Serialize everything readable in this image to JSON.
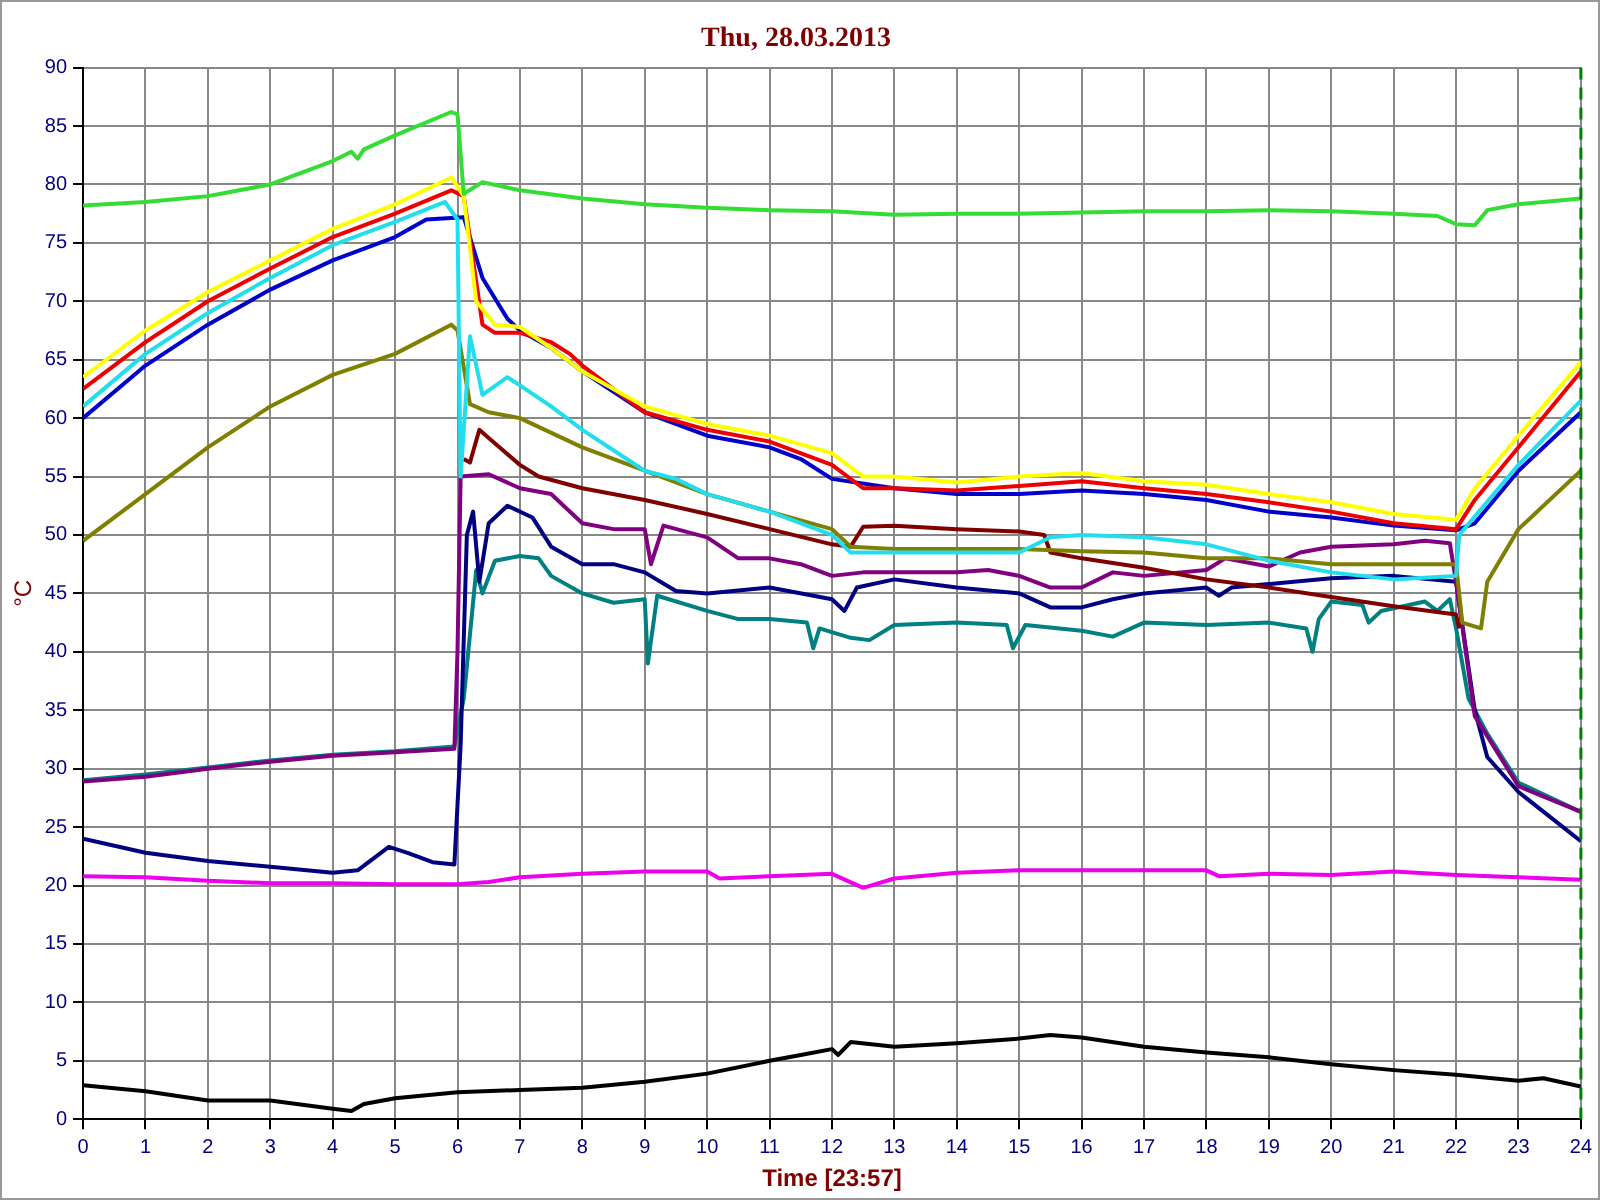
{
  "chart_data": {
    "type": "line",
    "title": "Thu, 28.03.2013",
    "xlabel": "Time [23:57]",
    "ylabel": "°C",
    "xlim": [
      0,
      24
    ],
    "xticks": [
      0,
      1,
      2,
      3,
      4,
      5,
      6,
      7,
      8,
      9,
      10,
      11,
      12,
      13,
      14,
      15,
      16,
      17,
      18,
      19,
      20,
      21,
      22,
      23,
      24
    ],
    "ylim": [
      0,
      90
    ],
    "yticks": [
      0,
      5,
      10,
      15,
      20,
      25,
      30,
      35,
      40,
      45,
      50,
      55,
      60,
      65,
      70,
      75,
      80,
      85,
      90
    ],
    "grid": true,
    "legend": false,
    "ref_lines": [
      {
        "axis": "x",
        "value": 24,
        "color": "#008000",
        "line_style": "dashed"
      }
    ],
    "series": [
      {
        "color": "#33dd33",
        "x": [
          0,
          1,
          2,
          3,
          4,
          4.3,
          4.4,
          4.5,
          5,
          5.9,
          6,
          6.1,
          6.4,
          7,
          8,
          9,
          10,
          11,
          12,
          13,
          14,
          15,
          16,
          17,
          18,
          19,
          20,
          21,
          21.7,
          22,
          22.3,
          22.5,
          23,
          24
        ],
        "values": [
          78.2,
          78.5,
          79,
          80,
          82,
          82.8,
          82.2,
          83,
          84.2,
          86.2,
          86,
          79.2,
          80.2,
          79.5,
          78.8,
          78.3,
          78,
          77.8,
          77.7,
          77.4,
          77.5,
          77.5,
          77.6,
          77.7,
          77.7,
          77.8,
          77.7,
          77.5,
          77.3,
          76.6,
          76.5,
          77.8,
          78.3,
          78.8
        ]
      },
      {
        "color": "#ffff00",
        "x": [
          0,
          1,
          2,
          3,
          4,
          5,
          5.9,
          6.1,
          6.3,
          6.6,
          7,
          7.5,
          8,
          9,
          10,
          11,
          12,
          12.5,
          13,
          14,
          15,
          16,
          17,
          18,
          19,
          20,
          21,
          22,
          22.3,
          23,
          24
        ],
        "values": [
          63.5,
          67.5,
          70.8,
          73.5,
          76.2,
          78.3,
          80.6,
          79,
          70,
          68,
          67.8,
          66,
          64,
          61,
          59.5,
          58.5,
          57,
          55,
          55,
          54.5,
          55,
          55.3,
          54.6,
          54.3,
          53.5,
          52.8,
          51.8,
          51.3,
          54,
          58.5,
          64.8
        ]
      },
      {
        "color": "#ee0000",
        "x": [
          0,
          1,
          2,
          3,
          4,
          5,
          5.9,
          6.1,
          6.4,
          6.6,
          7,
          7.5,
          7.8,
          8,
          9,
          10,
          11,
          12,
          12.5,
          13,
          14,
          15,
          16,
          17,
          18,
          19,
          20,
          21,
          22,
          22.3,
          23,
          24
        ],
        "values": [
          62.5,
          66.5,
          70,
          72.8,
          75.5,
          77.5,
          79.5,
          79,
          68,
          67.3,
          67.3,
          66.5,
          65.5,
          64.5,
          60.5,
          59,
          58,
          56,
          54,
          54,
          53.8,
          54.2,
          54.6,
          54,
          53.5,
          52.8,
          52,
          51,
          50.5,
          53,
          57.5,
          64
        ]
      },
      {
        "color": "#22ddee",
        "x": [
          0,
          1,
          2,
          3,
          4,
          5,
          5.8,
          6,
          6.05,
          6.2,
          6.4,
          6.8,
          7,
          7.5,
          8,
          9,
          9.5,
          10,
          11,
          12,
          12.3,
          13,
          14,
          15,
          15.5,
          16,
          17,
          18,
          19,
          20,
          21,
          22,
          22.05,
          23,
          24
        ],
        "values": [
          61,
          65.5,
          69,
          72,
          74.8,
          76.8,
          78.5,
          77,
          55,
          67,
          62,
          63.5,
          62.8,
          61,
          59,
          55.5,
          54.8,
          53.5,
          52,
          50,
          48.5,
          48.5,
          48.5,
          48.5,
          49.8,
          50,
          49.8,
          49.2,
          47.8,
          46.8,
          46.2,
          46.5,
          50,
          56,
          61.5
        ]
      },
      {
        "color": "#0000cc",
        "x": [
          0,
          1,
          2,
          3,
          4,
          5,
          5.5,
          6.1,
          6.4,
          6.8,
          7,
          7.5,
          8,
          9,
          10,
          11,
          11.5,
          12,
          13,
          14,
          15,
          16,
          17,
          18,
          19,
          20,
          21,
          22,
          22.3,
          23,
          24
        ],
        "values": [
          60,
          64.5,
          68,
          71,
          73.5,
          75.5,
          77,
          77.2,
          72,
          68.5,
          67.5,
          66,
          64,
          60.5,
          58.5,
          57.5,
          56.5,
          54.8,
          54,
          53.5,
          53.5,
          53.8,
          53.5,
          53,
          52,
          51.5,
          50.8,
          50.4,
          51,
          55.5,
          60.5
        ]
      },
      {
        "color": "#808000",
        "x": [
          0,
          1,
          2,
          3,
          4,
          5,
          5.9,
          6,
          6.2,
          6.5,
          7,
          8,
          9,
          10,
          11,
          12,
          12.3,
          13,
          14,
          15,
          16,
          17,
          18,
          19,
          20,
          21,
          22,
          22.1,
          22.4,
          22.5,
          23,
          24
        ],
        "values": [
          49.5,
          53.5,
          57.5,
          61,
          63.7,
          65.5,
          68,
          67.5,
          61.2,
          60.5,
          60,
          57.5,
          55.5,
          53.5,
          52,
          50.5,
          49,
          48.8,
          48.8,
          48.8,
          48.6,
          48.5,
          48,
          48,
          47.5,
          47.5,
          47.5,
          42.5,
          42,
          46,
          50.5,
          55.5
        ]
      },
      {
        "color": "#800000",
        "x": [
          6.1,
          6.2,
          6.35,
          6.5,
          7,
          7.3,
          8,
          9,
          10,
          11,
          12,
          12.3,
          12.5,
          13,
          14,
          15,
          15.4,
          15.5,
          16,
          17,
          18,
          19,
          20,
          21,
          22,
          22.05
        ],
        "values": [
          56.5,
          56.2,
          59,
          58.3,
          56,
          55,
          54,
          53,
          51.8,
          50.5,
          49.2,
          49,
          50.7,
          50.8,
          50.5,
          50.3,
          50,
          48.5,
          48,
          47.2,
          46.2,
          45.5,
          44.7,
          43.9,
          43.2,
          42
        ]
      },
      {
        "color": "#800080",
        "x": [
          0,
          1,
          2,
          3,
          4,
          5,
          5.95,
          6,
          6.05,
          6.5,
          7,
          7.5,
          8,
          8.5,
          9,
          9.1,
          9.3,
          10,
          10.5,
          11,
          11.5,
          12,
          12.5,
          13,
          14,
          14.5,
          15,
          15.5,
          16,
          16.5,
          17,
          18,
          18.3,
          19,
          19.5,
          20,
          21,
          21.5,
          21.9,
          22,
          22.3,
          23,
          24
        ],
        "values": [
          28.9,
          29.3,
          30,
          30.6,
          31.1,
          31.4,
          31.7,
          40,
          55,
          55.2,
          54,
          53.5,
          51,
          50.5,
          50.5,
          47.5,
          50.8,
          49.8,
          48,
          48,
          47.5,
          46.5,
          46.8,
          46.8,
          46.8,
          47,
          46.5,
          45.5,
          45.5,
          46.8,
          46.5,
          47,
          48,
          47.3,
          48.5,
          49,
          49.2,
          49.5,
          49.3,
          46,
          34.5,
          28.5,
          26.3
        ]
      },
      {
        "color": "#000080",
        "x": [
          0,
          1,
          2,
          3,
          4,
          4.4,
          4.9,
          5.2,
          5.6,
          5.95,
          6.05,
          6.15,
          6.25,
          6.35,
          6.5,
          6.8,
          7.2,
          7.5,
          8,
          8.5,
          9,
          9.5,
          10,
          11,
          12,
          12.2,
          12.4,
          13,
          14,
          15,
          15.5,
          16,
          16.5,
          17,
          18,
          18.2,
          18.4,
          19,
          20,
          21,
          22,
          22.3,
          22.5,
          23,
          24
        ],
        "values": [
          24,
          22.8,
          22.1,
          21.6,
          21.1,
          21.3,
          23.3,
          22.8,
          22,
          21.8,
          32,
          50,
          52,
          46,
          51,
          52.5,
          51.5,
          49,
          47.5,
          47.5,
          46.8,
          45.2,
          45,
          45.5,
          44.5,
          43.5,
          45.5,
          46.2,
          45.5,
          45,
          43.8,
          43.8,
          44.5,
          45,
          45.5,
          44.8,
          45.5,
          45.8,
          46.3,
          46.5,
          46,
          35,
          31,
          28,
          23.8
        ]
      },
      {
        "color": "#008080",
        "x": [
          0,
          1,
          2,
          3,
          4,
          5,
          5.95,
          6.1,
          6.3,
          6.4,
          6.6,
          7,
          7.3,
          7.5,
          8,
          8.5,
          9,
          9.05,
          9.2,
          10,
          10.5,
          11,
          11.6,
          11.7,
          11.8,
          12.3,
          12.6,
          13,
          14,
          14.8,
          14.9,
          15.1,
          16,
          16.5,
          17,
          18,
          19,
          19.6,
          19.7,
          19.8,
          20,
          20.5,
          20.6,
          20.8,
          21.5,
          21.7,
          21.9,
          22,
          22.2,
          22.5,
          23,
          24
        ],
        "values": [
          29,
          29.5,
          30.1,
          30.7,
          31.2,
          31.5,
          31.9,
          36,
          47,
          45,
          47.8,
          48.2,
          48,
          46.5,
          45,
          44.2,
          44.5,
          39,
          44.8,
          43.5,
          42.8,
          42.8,
          42.5,
          40.3,
          42,
          41.2,
          41,
          42.3,
          42.5,
          42.3,
          40.3,
          42.3,
          41.8,
          41.3,
          42.5,
          42.3,
          42.5,
          42,
          40,
          42.8,
          44.3,
          44,
          42.5,
          43.5,
          44.3,
          43.5,
          44.5,
          42,
          36,
          33,
          28.8,
          26.3
        ]
      },
      {
        "color": "#ee00ee",
        "x": [
          0,
          1,
          2,
          3,
          4,
          5,
          6,
          6.5,
          7,
          8,
          9,
          10,
          10.2,
          11,
          12,
          12.5,
          13,
          14,
          15,
          16,
          17,
          18,
          18.2,
          19,
          20,
          21,
          22,
          23,
          24
        ],
        "values": [
          20.8,
          20.7,
          20.4,
          20.2,
          20.2,
          20.1,
          20.1,
          20.3,
          20.7,
          21,
          21.2,
          21.2,
          20.6,
          20.8,
          21,
          19.8,
          20.6,
          21.1,
          21.3,
          21.3,
          21.3,
          21.3,
          20.8,
          21,
          20.9,
          21.2,
          20.9,
          20.7,
          20.5
        ]
      },
      {
        "color": "#000000",
        "x": [
          0,
          1,
          2,
          3,
          4,
          4.3,
          4.5,
          5,
          6,
          7,
          8,
          9,
          10,
          11,
          11.5,
          12,
          12.1,
          12.3,
          13,
          14,
          15,
          15.5,
          16,
          17,
          18,
          19,
          20,
          21,
          22,
          23,
          23.4,
          24
        ],
        "values": [
          2.9,
          2.4,
          1.6,
          1.6,
          0.9,
          0.7,
          1.3,
          1.8,
          2.3,
          2.5,
          2.7,
          3.2,
          3.9,
          5,
          5.5,
          6,
          5.5,
          6.6,
          6.2,
          6.5,
          6.9,
          7.2,
          7,
          6.2,
          5.7,
          5.3,
          4.7,
          4.2,
          3.8,
          3.3,
          3.5,
          2.8
        ]
      }
    ]
  }
}
